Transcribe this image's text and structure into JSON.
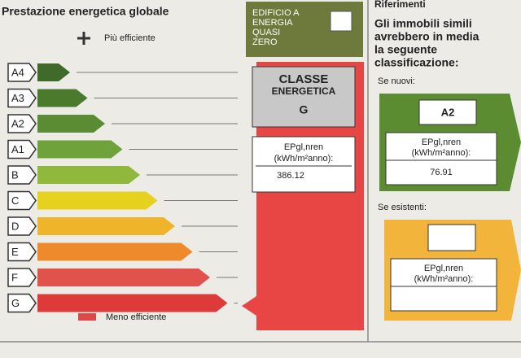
{
  "left": {
    "title": "Prestazione energetica globale",
    "more_efficient": "Più efficiente",
    "less_efficient": "Meno efficiente",
    "classes": [
      "A4",
      "A3",
      "A2",
      "A1",
      "B",
      "C",
      "D",
      "E",
      "F",
      "G"
    ]
  },
  "nzeb": {
    "lines": [
      "EDIFICIO A",
      "ENERGIA",
      "QUASI",
      "ZERO"
    ]
  },
  "rating": {
    "heading": "CLASSE",
    "subheading": "ENERGETICA",
    "class": "G",
    "ep_label": "EPgl,nren",
    "ep_unit": "(kWh/m²anno):",
    "ep_value": "386.12"
  },
  "references": {
    "title": "Riferimenti",
    "lines": [
      "Gli immobili simili",
      "avrebbero in media",
      "la seguente",
      "classificazione:"
    ],
    "new": {
      "label": "Se nuovi:",
      "class": "A2",
      "ep_label": "EPgl,nren",
      "ep_unit": "(kWh/m²anno):",
      "ep_value": "76.91"
    },
    "existing": {
      "label": "Se esistenti:",
      "ep_label": "EPgl,nren",
      "ep_unit": "(kWh/m²anno):"
    }
  }
}
